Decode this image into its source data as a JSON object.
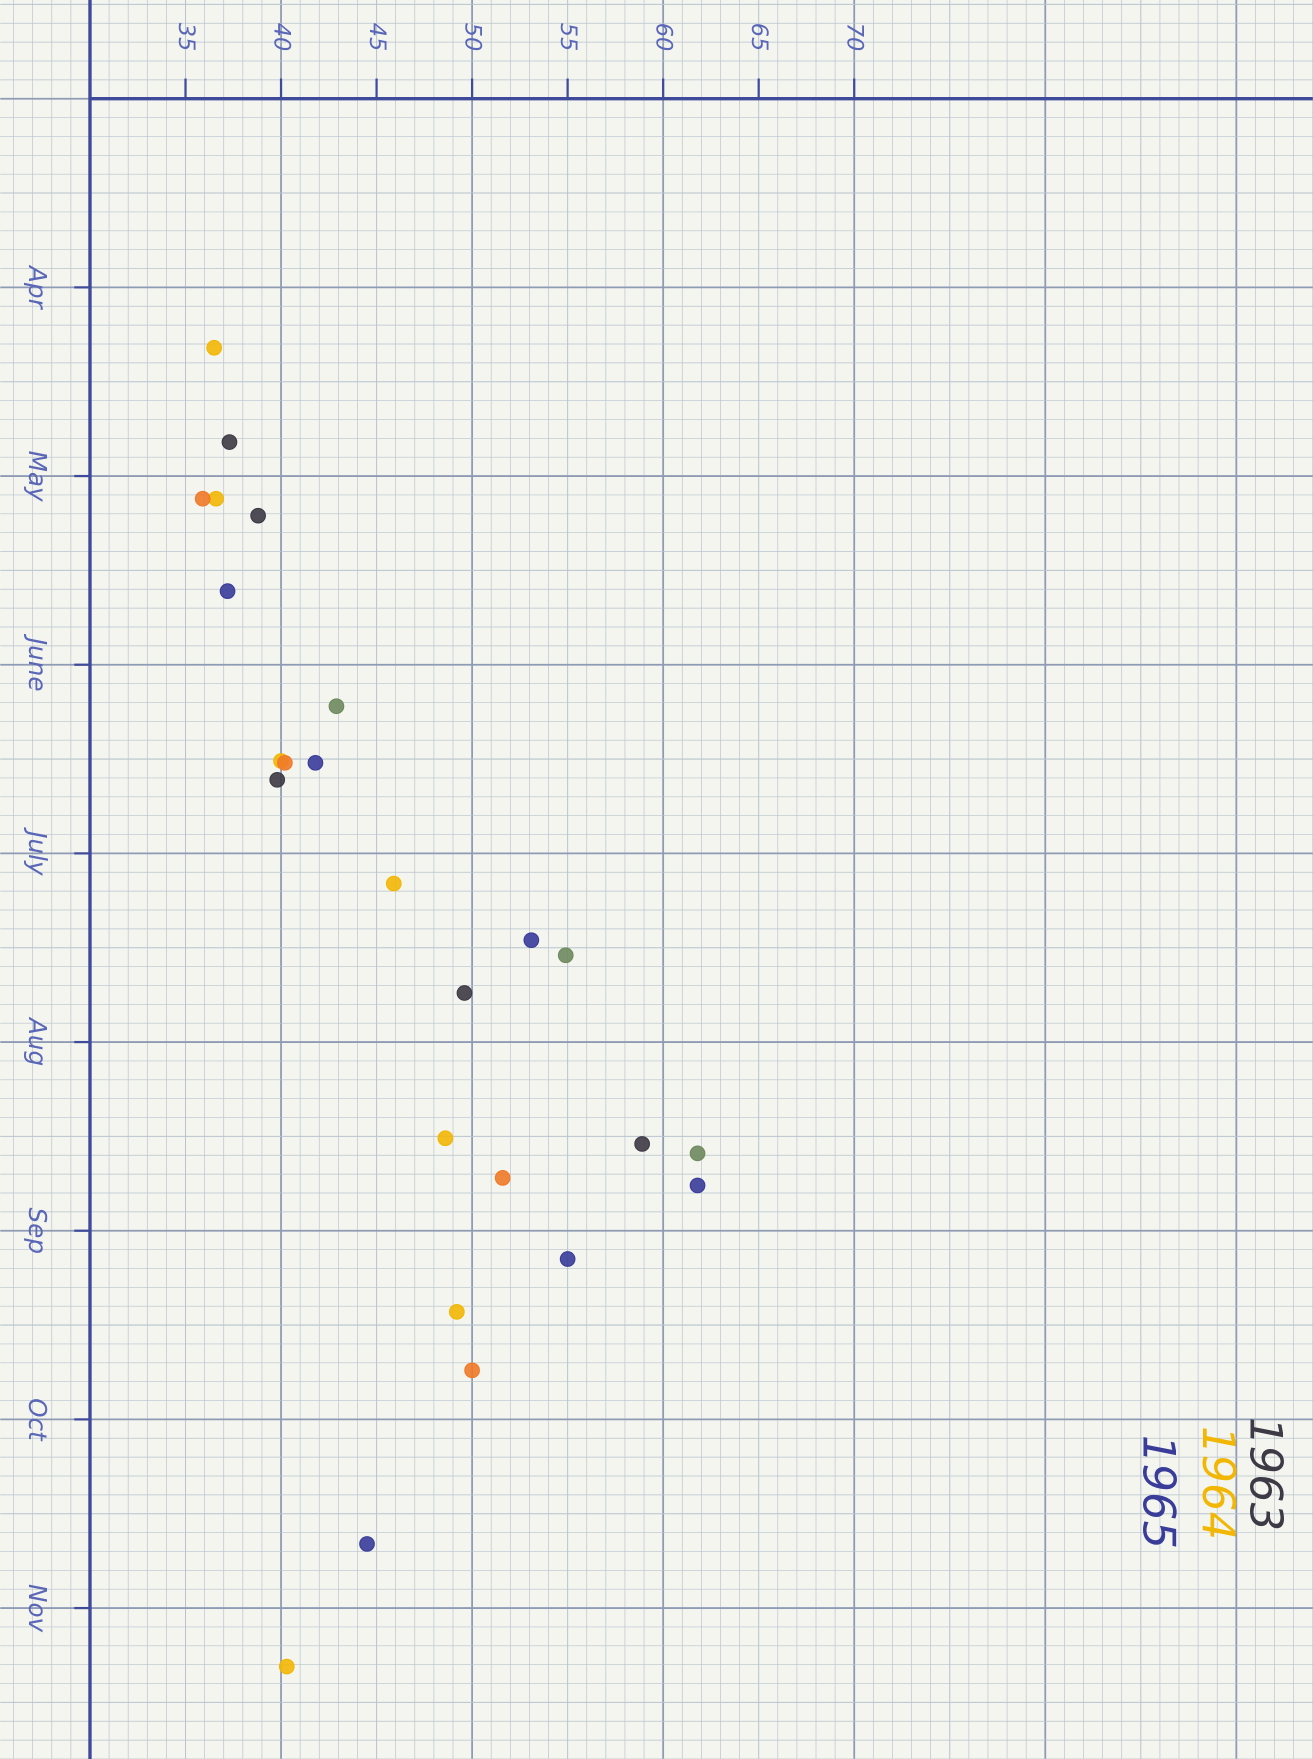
{
  "chart_data": {
    "type": "scatter",
    "xlim": [
      30,
      94
    ],
    "xticks": [
      35,
      40,
      45,
      50,
      55,
      60,
      65,
      70
    ],
    "ylim": [
      3,
      11.8
    ],
    "yticks": [
      {
        "value": 4,
        "label": "Apr"
      },
      {
        "value": 5,
        "label": "May"
      },
      {
        "value": 6,
        "label": "June"
      },
      {
        "value": 7,
        "label": "July"
      },
      {
        "value": 8,
        "label": "Aug"
      },
      {
        "value": 9,
        "label": "Sep"
      },
      {
        "value": 10,
        "label": "Oct"
      },
      {
        "value": 11,
        "label": "Nov"
      }
    ],
    "series": [
      {
        "name": "1965",
        "color": "#3a3c9a",
        "x": [
          37.2,
          41.8,
          53.1,
          61.8,
          55,
          44.5
        ],
        "values": [
          5.61,
          6.52,
          7.46,
          8.76,
          9.15,
          10.66
        ]
      },
      {
        "name": "1964",
        "color": "#f2b705",
        "x": [
          36.5,
          36.6,
          40,
          45.9,
          48.6,
          49.2,
          40.3
        ],
        "values": [
          4.32,
          5.12,
          6.51,
          7.16,
          8.51,
          9.43,
          11.31
        ]
      },
      {
        "name": "1963",
        "color": "#3d3a45",
        "x": [
          37.3,
          38.8,
          39.8,
          49.6,
          58.9
        ],
        "values": [
          4.82,
          5.21,
          6.61,
          7.74,
          8.54
        ]
      },
      {
        "color": "#f07a28",
        "x": [
          35.9,
          40.2,
          51.6,
          50
        ],
        "values": [
          5.12,
          6.52,
          8.72,
          9.74
        ]
      },
      {
        "color": "#6f8a5e",
        "x": [
          42.9,
          54.9,
          61.8
        ],
        "values": [
          6.22,
          7.54,
          8.59
        ]
      }
    ]
  }
}
